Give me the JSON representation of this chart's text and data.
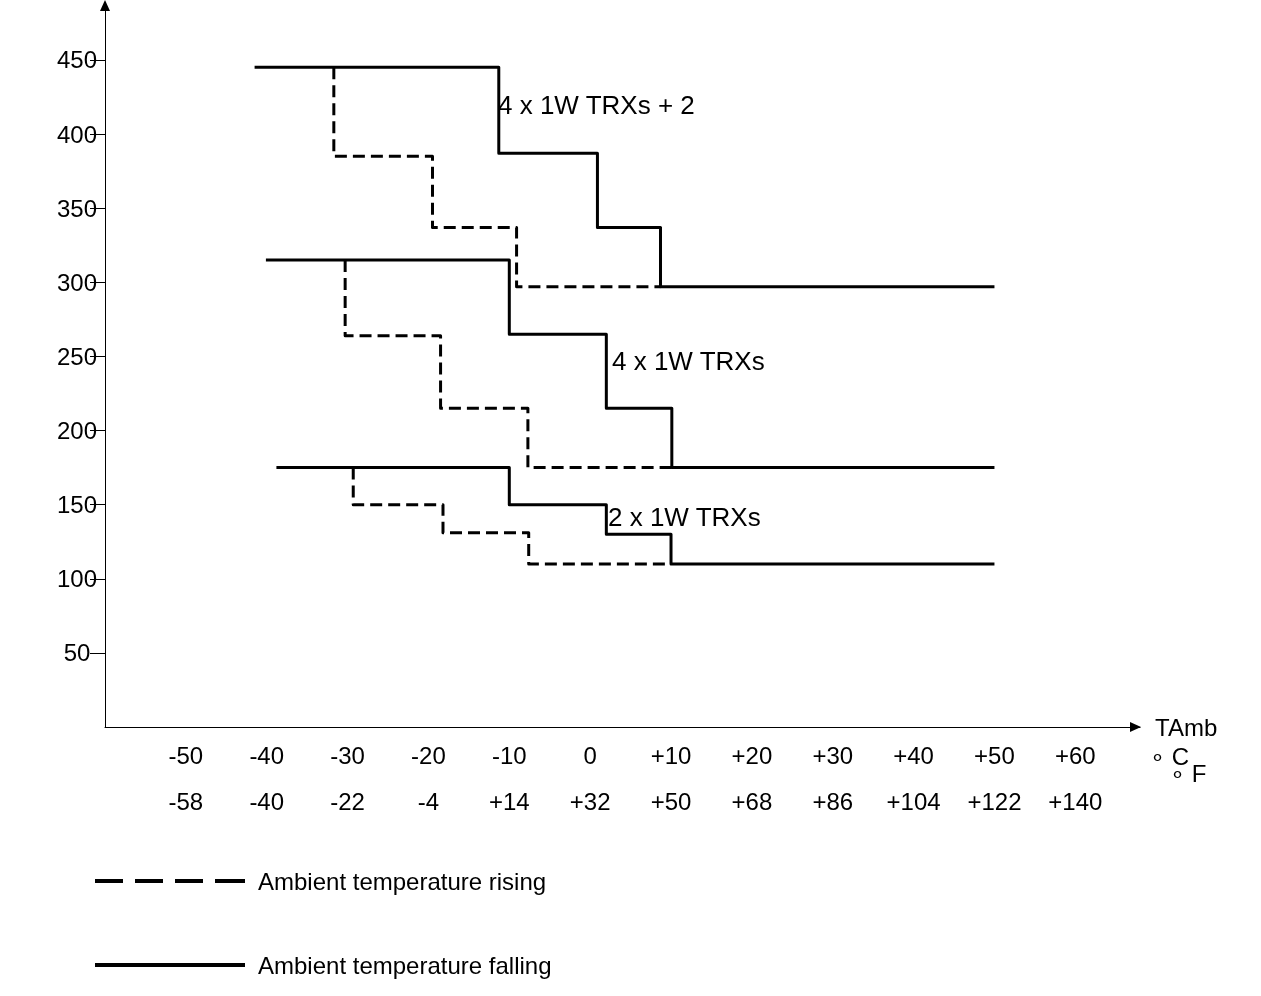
{
  "chart_data": {
    "type": "step",
    "xlabel": "TAmb",
    "x2label": "∘ F",
    "annotations": [
      "∘ C",
      "4 x 1W TRXs + 2",
      "4 x 1W TRXs",
      "2 x 1W TRXs"
    ],
    "xlim": [
      -60,
      68
    ],
    "xticks": [
      -50,
      -40,
      -30,
      -20,
      -10,
      0,
      {
        "value": 10,
        "label": "+10"
      },
      {
        "value": 20,
        "label": "+20"
      },
      {
        "value": 30,
        "label": "+30"
      },
      {
        "value": 40,
        "label": "+40"
      },
      {
        "value": 50,
        "label": "+50"
      },
      {
        "value": 60,
        "label": "+60"
      }
    ],
    "x2lim": [
      -76,
      154.4
    ],
    "x2ticks": [
      -58,
      -40,
      -22,
      -4,
      {
        "value": 14,
        "label": "+14"
      },
      {
        "value": 32,
        "label": "+32"
      },
      {
        "value": 50,
        "label": "+50"
      },
      {
        "value": 68,
        "label": "+68"
      },
      {
        "value": 86,
        "label": "+86"
      },
      {
        "value": 104,
        "label": "+104"
      },
      {
        "value": 122,
        "label": "+122"
      },
      {
        "value": 140,
        "label": "+140"
      }
    ],
    "ylim": [
      0,
      485
    ],
    "yticks": [
      50,
      100,
      150,
      200,
      250,
      300,
      350,
      400,
      450
    ],
    "grid": false,
    "legend": "bottom left",
    "marker": "none",
    "series": [
      {
        "name": "Ambient temperature rising",
        "color": "#000000",
        "line_style": "dashed",
        "x": [
          -31.7,
          -31.7,
          -19.5,
          -9.1,
          8.7
        ],
        "values": [
          445,
          385,
          337,
          297,
          297
        ]
      },
      {
        "name": "Ambient temperature falling",
        "color": "#000000",
        "line_style": "solid",
        "x": [
          -41.5,
          -11.3,
          0.9,
          8.7,
          50
        ],
        "values": [
          445,
          387,
          337,
          297,
          297
        ]
      },
      {
        "color": "#000000",
        "line_style": "dashed",
        "x": [
          -30.3,
          -30.3,
          -18.5,
          -7.7,
          10.1
        ],
        "values": [
          315,
          264,
          215,
          175,
          175
        ]
      },
      {
        "color": "#000000",
        "line_style": "solid",
        "x": [
          -40.1,
          -10,
          2,
          10.1,
          50
        ],
        "values": [
          315,
          265,
          215,
          175,
          175
        ]
      },
      {
        "color": "#000000",
        "line_style": "dashed",
        "x": [
          -29.3,
          -29.3,
          -18.2,
          -7.6,
          10
        ],
        "values": [
          175,
          150,
          131,
          110,
          110
        ]
      },
      {
        "color": "#000000",
        "line_style": "solid",
        "x": [
          -38.8,
          -10,
          2,
          10,
          50
        ],
        "values": [
          175,
          150,
          130,
          110,
          110
        ]
      }
    ]
  }
}
